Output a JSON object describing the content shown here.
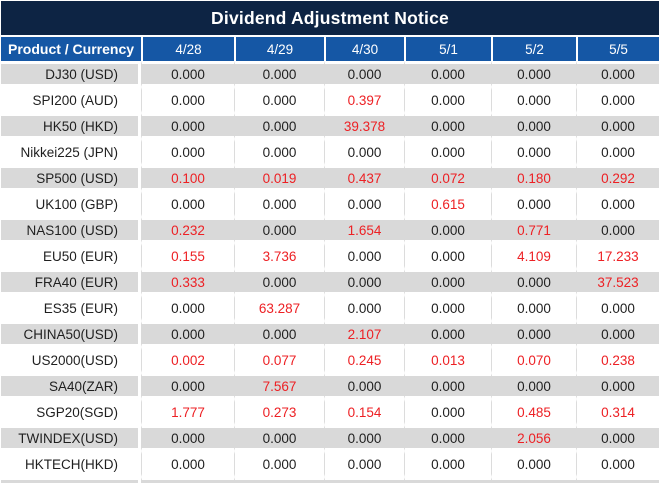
{
  "title": "Dividend Adjustment Notice",
  "table": {
    "corner_header": "Product / Currency",
    "date_columns": [
      "4/28",
      "4/29",
      "4/30",
      "5/1",
      "5/2",
      "5/5"
    ],
    "rows": [
      {
        "product": "DJ30 (USD)",
        "values": [
          "0.000",
          "0.000",
          "0.000",
          "0.000",
          "0.000",
          "0.000"
        ],
        "red": [
          false,
          false,
          false,
          false,
          false,
          false
        ]
      },
      {
        "product": "SPI200 (AUD)",
        "values": [
          "0.000",
          "0.000",
          "0.397",
          "0.000",
          "0.000",
          "0.000"
        ],
        "red": [
          false,
          false,
          true,
          false,
          false,
          false
        ]
      },
      {
        "product": "HK50 (HKD)",
        "values": [
          "0.000",
          "0.000",
          "39.378",
          "0.000",
          "0.000",
          "0.000"
        ],
        "red": [
          false,
          false,
          true,
          false,
          false,
          false
        ]
      },
      {
        "product": "Nikkei225 (JPN)",
        "values": [
          "0.000",
          "0.000",
          "0.000",
          "0.000",
          "0.000",
          "0.000"
        ],
        "red": [
          false,
          false,
          false,
          false,
          false,
          false
        ]
      },
      {
        "product": "SP500 (USD)",
        "values": [
          "0.100",
          "0.019",
          "0.437",
          "0.072",
          "0.180",
          "0.292"
        ],
        "red": [
          true,
          true,
          true,
          true,
          true,
          true
        ]
      },
      {
        "product": "UK100 (GBP)",
        "values": [
          "0.000",
          "0.000",
          "0.000",
          "0.615",
          "0.000",
          "0.000"
        ],
        "red": [
          false,
          false,
          false,
          true,
          false,
          false
        ]
      },
      {
        "product": "NAS100 (USD)",
        "values": [
          "0.232",
          "0.000",
          "1.654",
          "0.000",
          "0.771",
          "0.000"
        ],
        "red": [
          true,
          false,
          true,
          false,
          true,
          false
        ]
      },
      {
        "product": "EU50 (EUR)",
        "values": [
          "0.155",
          "3.736",
          "0.000",
          "0.000",
          "4.109",
          "17.233"
        ],
        "red": [
          true,
          true,
          false,
          false,
          true,
          true
        ]
      },
      {
        "product": "FRA40 (EUR)",
        "values": [
          "0.333",
          "0.000",
          "0.000",
          "0.000",
          "0.000",
          "37.523"
        ],
        "red": [
          true,
          false,
          false,
          false,
          false,
          true
        ]
      },
      {
        "product": "ES35 (EUR)",
        "values": [
          "0.000",
          "63.287",
          "0.000",
          "0.000",
          "0.000",
          "0.000"
        ],
        "red": [
          false,
          true,
          false,
          false,
          false,
          false
        ]
      },
      {
        "product": "CHINA50(USD)",
        "values": [
          "0.000",
          "0.000",
          "2.107",
          "0.000",
          "0.000",
          "0.000"
        ],
        "red": [
          false,
          false,
          true,
          false,
          false,
          false
        ]
      },
      {
        "product": "US2000(USD)",
        "values": [
          "0.002",
          "0.077",
          "0.245",
          "0.013",
          "0.070",
          "0.238"
        ],
        "red": [
          true,
          true,
          true,
          true,
          true,
          true
        ]
      },
      {
        "product": "SA40(ZAR)",
        "values": [
          "0.000",
          "7.567",
          "0.000",
          "0.000",
          "0.000",
          "0.000"
        ],
        "red": [
          false,
          true,
          false,
          false,
          false,
          false
        ]
      },
      {
        "product": "SGP20(SGD)",
        "values": [
          "1.777",
          "0.273",
          "0.154",
          "0.000",
          "0.485",
          "0.314"
        ],
        "red": [
          true,
          true,
          true,
          false,
          true,
          true
        ]
      },
      {
        "product": "TWINDEX(USD)",
        "values": [
          "0.000",
          "0.000",
          "0.000",
          "0.000",
          "2.056",
          "0.000"
        ],
        "red": [
          false,
          false,
          false,
          false,
          true,
          false
        ]
      },
      {
        "product": "HKTECH(HKD)",
        "values": [
          "0.000",
          "0.000",
          "0.000",
          "0.000",
          "0.000",
          "0.000"
        ],
        "red": [
          false,
          false,
          false,
          false,
          false,
          false
        ]
      }
    ]
  },
  "colors": {
    "title_bar": "#0d2444",
    "header_row": "#1557a5",
    "stripe_gray": "#d9d9d9",
    "value_red": "#ed2024",
    "value_black": "#1f1f1f"
  }
}
